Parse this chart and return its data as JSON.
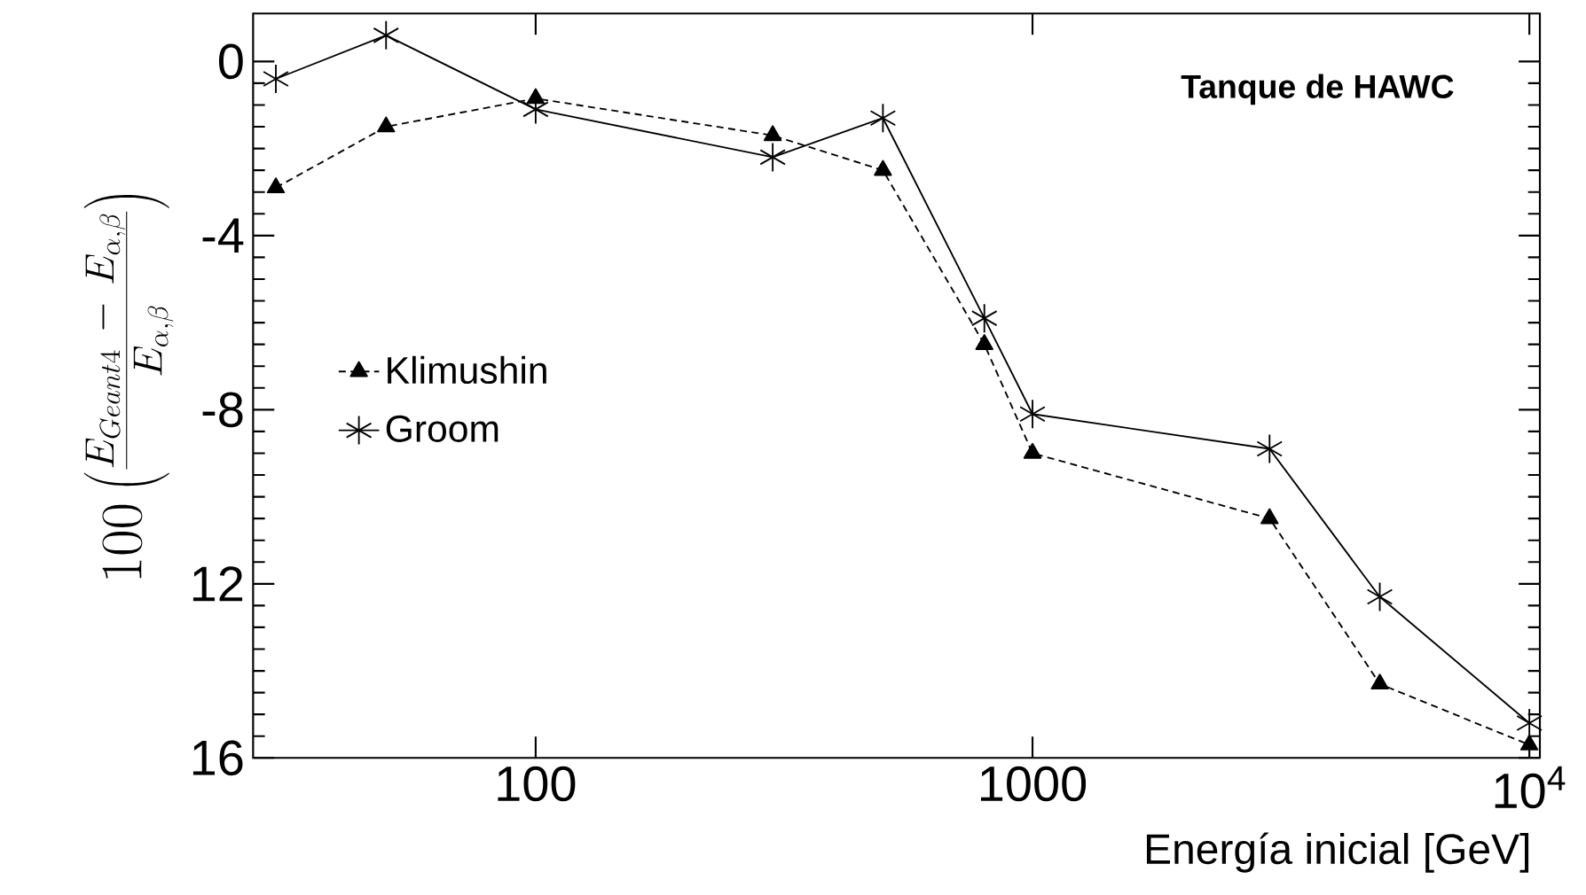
{
  "chart_data": {
    "type": "line",
    "xlabel": "Energía inicial [GeV]",
    "ylabel": "100\\left(\\frac{E_{Geant4}\\ -\\ E_{\\alpha,\\beta}}{E_{\\alpha,\\beta}}\\right)",
    "annotations": [
      "Tanque de HAWC"
    ],
    "log": "x",
    "xlim": [
      27,
      10500
    ],
    "ylim": [
      -16,
      1.1
    ],
    "xticks": [
      100,
      1000,
      {
        "value": 10000,
        "label": "10$^{4}$"
      }
    ],
    "yticks": [
      0,
      -4,
      -8,
      {
        "value": -12,
        "label": "12"
      },
      {
        "value": -16,
        "label": "16"
      }
    ],
    "legend": "left",
    "grid": false,
    "series": [
      {
        "name": "Klimushin",
        "color": "#000000",
        "marker": "triangle",
        "line_style": "dashed",
        "x": [
          30,
          50,
          100,
          300,
          500,
          800,
          1000,
          3000,
          5000,
          10000
        ],
        "values": [
          -2.9,
          -1.5,
          -0.85,
          -1.7,
          -2.5,
          -6.5,
          -9.0,
          -10.5,
          -14.3,
          -15.7
        ]
      },
      {
        "name": "Groom",
        "color": "#000000",
        "marker": "cross",
        "line_style": "solid",
        "x": [
          30,
          50,
          100,
          300,
          500,
          800,
          1000,
          3000,
          5000,
          10000
        ],
        "values": [
          -0.4,
          0.6,
          -1.1,
          -2.2,
          -1.3,
          -5.9,
          -8.1,
          -8.9,
          -12.3,
          -15.2
        ]
      }
    ]
  }
}
